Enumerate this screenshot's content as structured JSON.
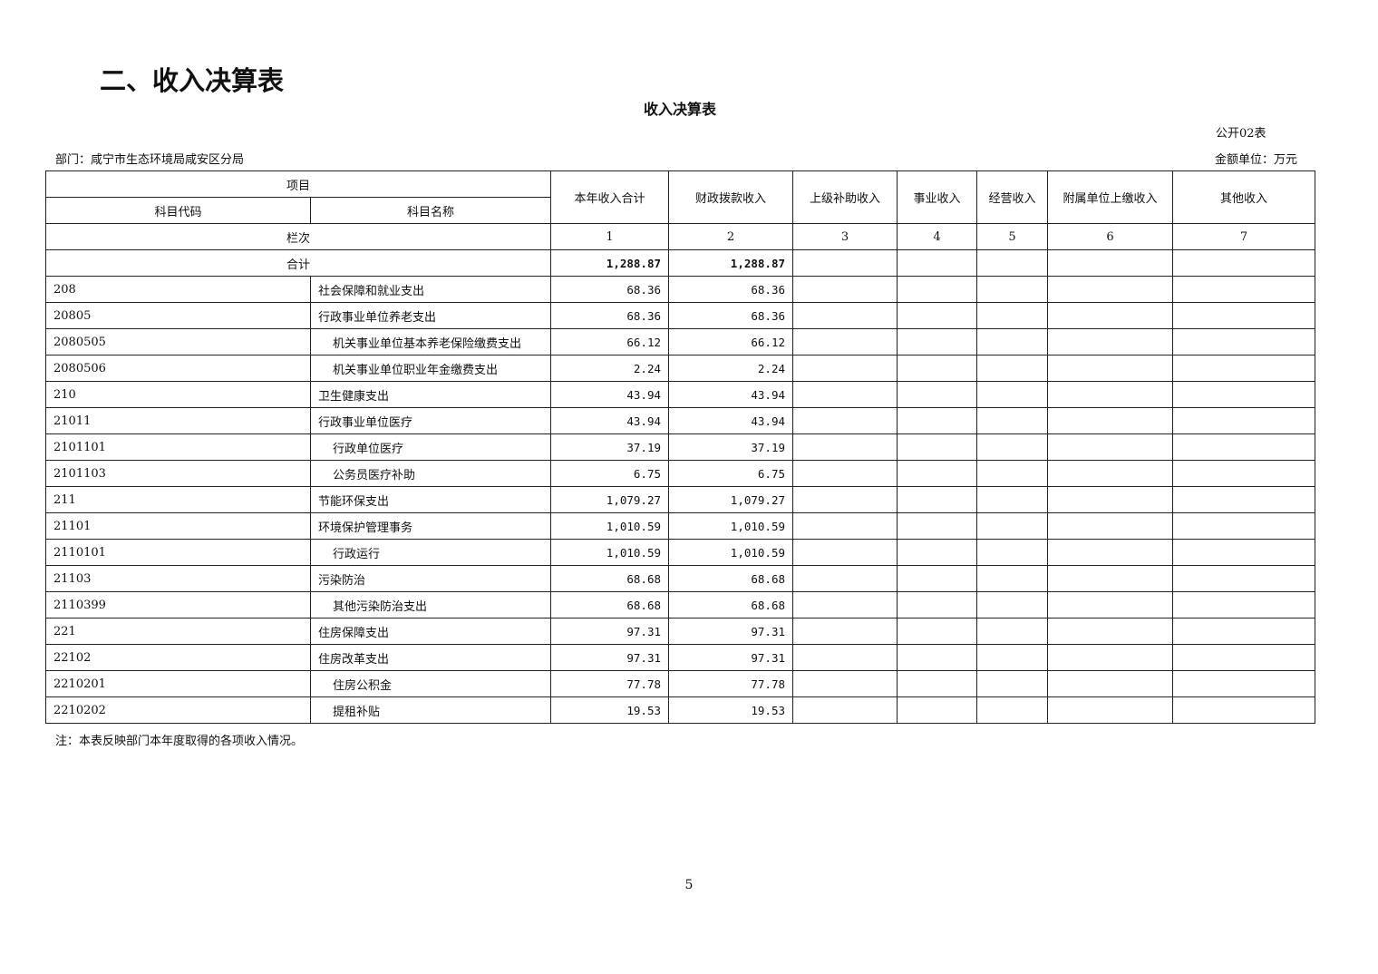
{
  "section_title": "二、收入决算表",
  "table_title": "收入决算表",
  "table_code": "公开02表",
  "department": "部门：咸宁市生态环境局咸安区分局",
  "unit": "金额单位：万元",
  "headers": {
    "item": "项目",
    "code": "科目代码",
    "name": "科目名称",
    "cols": [
      "本年收入合计",
      "财政拨款收入",
      "上级补助收入",
      "事业收入",
      "经营收入",
      "附属单位上缴收入",
      "其他收入"
    ]
  },
  "column_index": {
    "label": "栏次",
    "nums": [
      "1",
      "2",
      "3",
      "4",
      "5",
      "6",
      "7"
    ]
  },
  "total": {
    "label": "合计",
    "values": [
      "1,288.87",
      "1,288.87",
      "",
      "",
      "",
      "",
      ""
    ]
  },
  "rows": [
    {
      "code": "208",
      "name": "社会保障和就业支出",
      "total": "68.36",
      "fiscal": "68.36",
      "level": 0
    },
    {
      "code": "20805",
      "name": "行政事业单位养老支出",
      "total": "68.36",
      "fiscal": "68.36",
      "level": 0
    },
    {
      "code": "2080505",
      "name": "机关事业单位基本养老保险缴费支出",
      "total": "66.12",
      "fiscal": "66.12",
      "level": 1
    },
    {
      "code": "2080506",
      "name": "机关事业单位职业年金缴费支出",
      "total": "2.24",
      "fiscal": "2.24",
      "level": 1
    },
    {
      "code": "210",
      "name": "卫生健康支出",
      "total": "43.94",
      "fiscal": "43.94",
      "level": 0
    },
    {
      "code": "21011",
      "name": "行政事业单位医疗",
      "total": "43.94",
      "fiscal": "43.94",
      "level": 0
    },
    {
      "code": "2101101",
      "name": "行政单位医疗",
      "total": "37.19",
      "fiscal": "37.19",
      "level": 1
    },
    {
      "code": "2101103",
      "name": "公务员医疗补助",
      "total": "6.75",
      "fiscal": "6.75",
      "level": 1
    },
    {
      "code": "211",
      "name": "节能环保支出",
      "total": "1,079.27",
      "fiscal": "1,079.27",
      "level": 0
    },
    {
      "code": "21101",
      "name": "环境保护管理事务",
      "total": "1,010.59",
      "fiscal": "1,010.59",
      "level": 0
    },
    {
      "code": "2110101",
      "name": "行政运行",
      "total": "1,010.59",
      "fiscal": "1,010.59",
      "level": 1
    },
    {
      "code": "21103",
      "name": "污染防治",
      "total": "68.68",
      "fiscal": "68.68",
      "level": 0
    },
    {
      "code": "2110399",
      "name": "其他污染防治支出",
      "total": "68.68",
      "fiscal": "68.68",
      "level": 1
    },
    {
      "code": "221",
      "name": "住房保障支出",
      "total": "97.31",
      "fiscal": "97.31",
      "level": 0
    },
    {
      "code": "22102",
      "name": "住房改革支出",
      "total": "97.31",
      "fiscal": "97.31",
      "level": 0
    },
    {
      "code": "2210201",
      "name": "住房公积金",
      "total": "77.78",
      "fiscal": "77.78",
      "level": 1
    },
    {
      "code": "2210202",
      "name": "提租补贴",
      "total": "19.53",
      "fiscal": "19.53",
      "level": 1
    }
  ],
  "note": "注：本表反映部门本年度取得的各项收入情况。",
  "page_number": "5"
}
